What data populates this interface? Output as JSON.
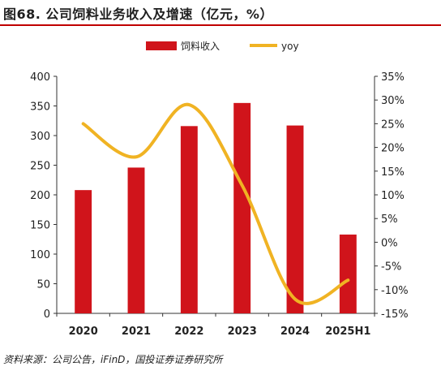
{
  "figure_title": "图68. 公司饲料业务收入及增速（亿元，%）",
  "source_note": "资料来源：公司公告，iFinD，国投证券证券研究所",
  "colors": {
    "bar": "#d0141b",
    "line": "#f0b323",
    "title_rule": "#c00000"
  },
  "chart_data": {
    "type": "bar",
    "title": "",
    "categories": [
      "2020",
      "2021",
      "2022",
      "2023",
      "2024",
      "2025H1"
    ],
    "series": [
      {
        "name": "饲料收入",
        "type": "bar",
        "axis": "left",
        "values": [
          208,
          246,
          316,
          355,
          317,
          133
        ]
      },
      {
        "name": "yoy",
        "type": "line",
        "axis": "right",
        "smooth": true,
        "values": [
          25,
          18,
          29,
          12,
          -12,
          -8
        ]
      }
    ],
    "y_left": {
      "min": 0,
      "max": 400,
      "step": 50,
      "ticks": [
        "0",
        "50",
        "100",
        "150",
        "200",
        "250",
        "300",
        "350",
        "400"
      ]
    },
    "y_right": {
      "min": -15,
      "max": 35,
      "step": 5,
      "ticks": [
        "-15%",
        "-10%",
        "-5%",
        "0%",
        "5%",
        "10%",
        "15%",
        "20%",
        "25%",
        "30%",
        "35%"
      ]
    },
    "legend_position": "top-center",
    "grid": false
  }
}
